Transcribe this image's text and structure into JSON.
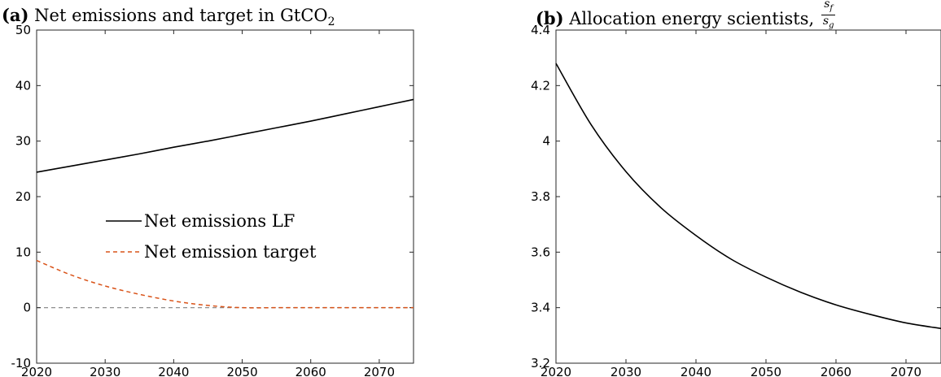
{
  "chart_data": [
    {
      "type": "line",
      "panel_label": "(a)",
      "title": "Net emissions and target in GtCO",
      "title_subscript": "2",
      "xlim": [
        2020,
        2075
      ],
      "ylim": [
        -10,
        50
      ],
      "xticks": [
        2020,
        2030,
        2040,
        2050,
        2060,
        2070
      ],
      "yticks": [
        -10,
        0,
        10,
        20,
        30,
        40,
        50
      ],
      "grid": false,
      "legend_position": "center-left",
      "series": [
        {
          "name": "Net emissions LF",
          "style": "solid",
          "color": "#000000",
          "x": [
            2020,
            2025,
            2030,
            2035,
            2040,
            2045,
            2050,
            2055,
            2060,
            2065,
            2070,
            2075
          ],
          "y": [
            24.4,
            25.5,
            26.6,
            27.7,
            28.9,
            30.0,
            31.2,
            32.4,
            33.6,
            34.9,
            36.2,
            37.5
          ]
        },
        {
          "name": "Net emission target",
          "style": "dashed",
          "color": "#d95319",
          "x": [
            2020,
            2025,
            2030,
            2035,
            2040,
            2045,
            2050,
            2055,
            2060,
            2065,
            2070,
            2075
          ],
          "y": [
            8.5,
            5.9,
            3.9,
            2.4,
            1.2,
            0.4,
            0.0,
            0.0,
            0.0,
            0.0,
            0.0,
            0.0
          ]
        }
      ],
      "reference_lines": [
        {
          "y": 0,
          "style": "dashed",
          "color": "#808080"
        }
      ]
    },
    {
      "type": "line",
      "panel_label": "(b)",
      "title": "Allocation energy scientists, ",
      "title_fraction_numerator": "s",
      "title_fraction_numerator_sub": "f",
      "title_fraction_denominator": "s",
      "title_fraction_denominator_sub": "g",
      "xlim": [
        2020,
        2075
      ],
      "ylim": [
        3.2,
        4.4
      ],
      "xticks": [
        2020,
        2030,
        2040,
        2050,
        2060,
        2070
      ],
      "yticks": [
        3.2,
        3.4,
        3.6,
        3.8,
        4.0,
        4.2,
        4.4
      ],
      "ytick_labels": [
        "3.2",
        "3.4",
        "3.6",
        "3.8",
        "4",
        "4.2",
        "4.4"
      ],
      "grid": false,
      "series": [
        {
          "style": "solid",
          "color": "#000000",
          "x": [
            2020,
            2025,
            2030,
            2035,
            2040,
            2045,
            2050,
            2055,
            2060,
            2065,
            2070,
            2075
          ],
          "y": [
            4.28,
            4.06,
            3.89,
            3.76,
            3.66,
            3.575,
            3.51,
            3.455,
            3.41,
            3.375,
            3.345,
            3.325
          ]
        }
      ]
    }
  ]
}
